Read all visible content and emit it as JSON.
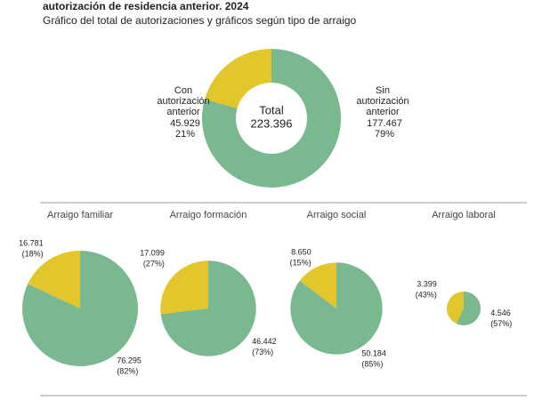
{
  "chart_data": [
    {
      "type": "donut",
      "title": "autorización de residencia anterior. 2024",
      "subtitle": "Gráfico del total de autorizaciones y gráficos según tipo de arraigo",
      "center_label": "Total",
      "total": {
        "value": 223396,
        "label": "223.396"
      },
      "categories": [
        "Con autorización anterior",
        "Sin autorización anterior"
      ],
      "values": [
        45929,
        177467
      ],
      "value_labels": [
        "45.929",
        "177.467"
      ],
      "percent_labels": [
        "21%",
        "79%"
      ],
      "colors": [
        "#e3c62c",
        "#7ab890"
      ]
    },
    {
      "type": "pie",
      "title": "Arraigo familiar",
      "values": [
        16781,
        76295
      ],
      "value_labels": [
        "16.781",
        "76.295"
      ],
      "percent_labels": [
        "(18%)",
        "(82%)"
      ],
      "colors": [
        "#e3c62c",
        "#7ab890"
      ]
    },
    {
      "type": "pie",
      "title": "Arraigo formación",
      "values": [
        17099,
        46442
      ],
      "value_labels": [
        "17.099",
        "46.442"
      ],
      "percent_labels": [
        "(27%)",
        "(73%)"
      ],
      "colors": [
        "#e3c62c",
        "#7ab890"
      ]
    },
    {
      "type": "pie",
      "title": "Arraigo social",
      "values": [
        8650,
        50184
      ],
      "value_labels": [
        "8.650",
        "50.184"
      ],
      "percent_labels": [
        "(15%)",
        "(85%)"
      ],
      "colors": [
        "#e3c62c",
        "#7ab890"
      ]
    },
    {
      "type": "pie",
      "title": "Arraigo laboral",
      "values": [
        3399,
        4546
      ],
      "value_labels": [
        "3.399",
        "4.546"
      ],
      "percent_labels": [
        "(43%)",
        "(57%)"
      ],
      "colors": [
        "#e3c62c",
        "#7ab890"
      ]
    }
  ]
}
